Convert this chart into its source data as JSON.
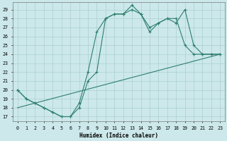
{
  "line1_x": [
    0,
    1,
    2,
    3,
    4,
    5,
    6,
    7,
    8,
    9,
    10,
    11,
    12,
    13,
    14,
    15,
    16,
    17,
    18,
    19,
    20,
    21,
    22,
    23
  ],
  "line1_y": [
    20.0,
    19.0,
    18.5,
    18.0,
    17.5,
    17.0,
    17.0,
    18.0,
    21.0,
    22.0,
    28.0,
    28.5,
    28.5,
    29.5,
    28.5,
    27.0,
    27.5,
    28.0,
    28.0,
    25.0,
    24.0,
    24.0,
    24.0,
    24.0
  ],
  "line2_x": [
    0,
    1,
    2,
    3,
    4,
    5,
    6,
    7,
    8,
    9,
    10,
    11,
    12,
    13,
    14,
    15,
    16,
    17,
    18,
    19,
    20,
    21,
    22,
    23
  ],
  "line2_y": [
    20.0,
    19.0,
    18.5,
    18.0,
    17.5,
    17.0,
    17.0,
    18.5,
    22.0,
    26.5,
    28.0,
    28.5,
    28.5,
    29.0,
    28.5,
    26.5,
    27.5,
    28.0,
    27.5,
    29.0,
    25.0,
    24.0,
    24.0,
    24.0
  ],
  "line3_x": [
    0,
    23
  ],
  "line3_y": [
    18.0,
    24.0
  ],
  "line_color": "#2d7f6e",
  "bg_color": "#cce8ea",
  "grid_color": "#aacfd2",
  "xlabel": "Humidex (Indice chaleur)",
  "ylabel_ticks": [
    17,
    18,
    19,
    20,
    21,
    22,
    23,
    24,
    25,
    26,
    27,
    28,
    29
  ],
  "xtick_labels": [
    "0",
    "1",
    "2",
    "3",
    "4",
    "5",
    "6",
    "7",
    "8",
    "9",
    "10",
    "11",
    "12",
    "13",
    "14",
    "15",
    "16",
    "17",
    "18",
    "19",
    "20",
    "21",
    "22",
    "23"
  ],
  "xlim": [
    -0.5,
    23.5
  ],
  "ylim": [
    16.5,
    29.8
  ],
  "figsize": [
    3.2,
    2.0
  ],
  "dpi": 100
}
